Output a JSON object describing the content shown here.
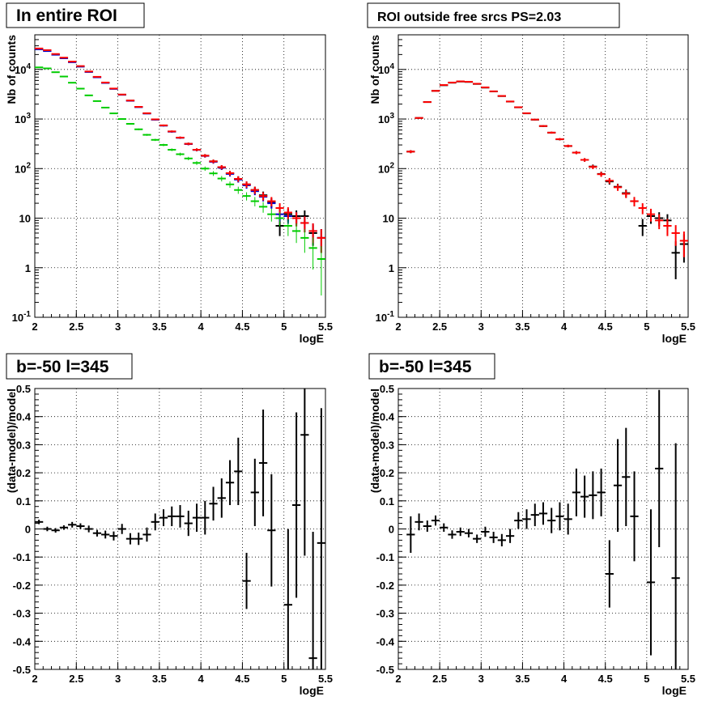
{
  "chart_data": [
    {
      "type": "scatter",
      "title": "In entire ROI",
      "xlabel": "logE",
      "ylabel": "Nb of counts",
      "xlim": [
        2,
        5.5
      ],
      "ylim": [
        0.1,
        50000
      ],
      "log_y": true,
      "grid": true,
      "x_tick_labels": [
        "2",
        "2.5",
        "3",
        "3.5",
        "4",
        "4.5",
        "5",
        "5.5"
      ],
      "y_tick_labels": [
        "10^-1",
        "1",
        "10",
        "10^2",
        "10^3",
        "10^4"
      ],
      "series": [
        {
          "color": "#000000",
          "x": [
            2.05,
            2.15,
            2.25,
            2.35,
            2.45,
            2.55,
            2.65,
            2.75,
            2.85,
            2.95,
            3.05,
            3.15,
            3.25,
            3.35,
            3.45,
            3.55,
            3.65,
            3.75,
            3.85,
            3.95,
            4.05,
            4.15,
            4.25,
            4.35,
            4.45,
            4.55,
            4.65,
            4.75,
            4.85,
            4.95,
            5.05,
            5.15,
            5.25,
            5.35,
            5.45
          ],
          "y": [
            26000,
            24000,
            20000,
            17000,
            14200,
            11500,
            9000,
            7000,
            5400,
            4100,
            3100,
            2350,
            1750,
            1300,
            980,
            740,
            560,
            420,
            315,
            240,
            182,
            140,
            106,
            80,
            62,
            48,
            37,
            29,
            21,
            7,
            12,
            11,
            11,
            5,
            4
          ]
        },
        {
          "color": "#0000cc",
          "x": [
            2.05,
            2.15,
            2.25,
            2.35,
            2.45,
            2.55,
            2.65,
            2.75,
            2.85,
            2.95,
            3.05,
            3.15,
            3.25,
            3.35,
            3.45,
            3.55,
            3.65,
            3.75,
            3.85,
            3.95,
            4.05,
            4.15,
            4.25,
            4.35,
            4.45,
            4.55,
            4.65,
            4.75,
            4.85,
            4.95,
            5.05,
            5.15,
            5.25,
            5.35,
            5.45
          ],
          "y": [
            25500,
            23500,
            19800,
            16800,
            14000,
            11400,
            8900,
            6950,
            5350,
            4050,
            3080,
            2330,
            1740,
            1290,
            970,
            735,
            555,
            418,
            313,
            238,
            180,
            137,
            104,
            78,
            60,
            46,
            35,
            27,
            20,
            12,
            11,
            10,
            8,
            5.5,
            4
          ]
        },
        {
          "color": "#ff0000",
          "x": [
            2.05,
            2.15,
            2.25,
            2.35,
            2.45,
            2.55,
            2.65,
            2.75,
            2.85,
            2.95,
            3.05,
            3.15,
            3.25,
            3.35,
            3.45,
            3.55,
            3.65,
            3.75,
            3.85,
            3.95,
            4.05,
            4.15,
            4.25,
            4.35,
            4.45,
            4.55,
            4.65,
            4.75,
            4.85,
            4.95,
            5.05,
            5.15,
            5.25,
            5.35,
            5.45
          ],
          "y": [
            26500,
            24500,
            20500,
            17300,
            14400,
            11700,
            9100,
            7100,
            5450,
            4120,
            3120,
            2360,
            1760,
            1310,
            985,
            745,
            562,
            422,
            316,
            240,
            182,
            140,
            107,
            81,
            62,
            48,
            37,
            28,
            22,
            16,
            13,
            10,
            8,
            5.5,
            4
          ]
        },
        {
          "color": "#00cc00",
          "x": [
            2.05,
            2.15,
            2.25,
            2.35,
            2.45,
            2.55,
            2.65,
            2.75,
            2.85,
            2.95,
            3.05,
            3.15,
            3.25,
            3.35,
            3.45,
            3.55,
            3.65,
            3.75,
            3.85,
            3.95,
            4.05,
            4.15,
            4.25,
            4.35,
            4.45,
            4.55,
            4.65,
            4.75,
            4.85,
            4.95,
            5.05,
            5.15,
            5.25,
            5.35,
            5.45
          ],
          "y": [
            11000,
            10500,
            8800,
            7200,
            5400,
            4100,
            3000,
            2300,
            1700,
            1300,
            1000,
            800,
            620,
            480,
            380,
            300,
            240,
            195,
            160,
            130,
            100,
            80,
            63,
            48,
            37,
            28,
            22,
            17,
            12,
            10,
            7,
            5.5,
            4,
            2.5,
            1.5
          ]
        }
      ]
    },
    {
      "type": "scatter",
      "title": "ROI outside free srcs PS=2.03",
      "xlabel": "logE",
      "ylabel": "Nb of counts",
      "xlim": [
        2,
        5.5
      ],
      "ylim": [
        0.1,
        50000
      ],
      "log_y": true,
      "grid": true,
      "x_tick_labels": [
        "2",
        "2.5",
        "3",
        "3.5",
        "4",
        "4.5",
        "5",
        "5.5"
      ],
      "y_tick_labels": [
        "10^-1",
        "1",
        "10",
        "10^2",
        "10^3",
        "10^4"
      ],
      "series": [
        {
          "color": "#000000",
          "x": [
            2.15,
            2.25,
            2.35,
            2.45,
            2.55,
            2.65,
            2.75,
            2.85,
            2.95,
            3.05,
            3.15,
            3.25,
            3.35,
            3.45,
            3.55,
            3.65,
            3.75,
            3.85,
            3.95,
            4.05,
            4.15,
            4.25,
            4.35,
            4.45,
            4.55,
            4.65,
            4.75,
            4.85,
            4.95,
            5.05,
            5.15,
            5.25,
            5.35,
            5.45
          ],
          "y": [
            220,
            1050,
            2200,
            3700,
            4800,
            5400,
            5700,
            5600,
            5100,
            4300,
            3600,
            2900,
            2250,
            1720,
            1300,
            970,
            720,
            530,
            390,
            285,
            210,
            150,
            110,
            78,
            55,
            43,
            32,
            22,
            7,
            11,
            10,
            9,
            2,
            3
          ]
        },
        {
          "color": "#ff0000",
          "x": [
            2.15,
            2.25,
            2.35,
            2.45,
            2.55,
            2.65,
            2.75,
            2.85,
            2.95,
            3.05,
            3.15,
            3.25,
            3.35,
            3.45,
            3.55,
            3.65,
            3.75,
            3.85,
            3.95,
            4.05,
            4.15,
            4.25,
            4.35,
            4.45,
            4.55,
            4.65,
            4.75,
            4.85,
            4.95,
            5.05,
            5.15,
            5.25,
            5.35,
            5.45
          ],
          "y": [
            220,
            1050,
            2200,
            3700,
            4850,
            5450,
            5750,
            5650,
            5150,
            4350,
            3620,
            2920,
            2260,
            1730,
            1310,
            975,
            722,
            532,
            392,
            286,
            210,
            150,
            108,
            77,
            57,
            42,
            31,
            22,
            16,
            12,
            9,
            7,
            5,
            3.5
          ]
        }
      ]
    },
    {
      "type": "scatter",
      "title": "b=-50 l=345",
      "xlabel": "logE",
      "ylabel": "(data-model)/model",
      "xlim": [
        2,
        5.5
      ],
      "ylim": [
        -0.5,
        0.5
      ],
      "grid": true,
      "x_tick_labels": [
        "2",
        "2.5",
        "3",
        "3.5",
        "4",
        "4.5",
        "5",
        "5.5"
      ],
      "y_tick_labels": [
        "-0.5",
        "-0.4",
        "-0.3",
        "-0.2",
        "-0.1",
        "0",
        "0.1",
        "0.2",
        "0.3",
        "0.4",
        "0.5"
      ],
      "series": [
        {
          "color": "#000000",
          "x": [
            2.05,
            2.15,
            2.25,
            2.35,
            2.45,
            2.55,
            2.65,
            2.75,
            2.85,
            2.95,
            3.05,
            3.15,
            3.25,
            3.35,
            3.45,
            3.55,
            3.65,
            3.75,
            3.85,
            3.95,
            4.05,
            4.15,
            4.25,
            4.35,
            4.45,
            4.55,
            4.65,
            4.75,
            4.85,
            4.95,
            5.05,
            5.15,
            5.25,
            5.35,
            5.45
          ],
          "y": [
            0.025,
            0.0,
            -0.005,
            0.005,
            0.015,
            0.01,
            0.0,
            -0.015,
            -0.02,
            -0.025,
            0.0,
            -0.035,
            -0.035,
            -0.02,
            0.025,
            0.04,
            0.045,
            0.045,
            0.02,
            0.04,
            0.04,
            0.09,
            0.11,
            0.165,
            0.205,
            -0.185,
            0.13,
            0.235,
            -0.005,
            null,
            -0.27,
            0.085,
            0.335,
            -0.46,
            -0.05
          ],
          "err": [
            0.008,
            0.008,
            0.008,
            0.008,
            0.01,
            0.01,
            0.012,
            0.012,
            0.014,
            0.016,
            0.018,
            0.02,
            0.022,
            0.025,
            0.03,
            0.03,
            0.035,
            0.04,
            0.045,
            0.05,
            0.06,
            0.06,
            0.07,
            0.08,
            0.12,
            0.1,
            0.12,
            0.19,
            0.2,
            null,
            0.27,
            0.33,
            0.43,
            0.45,
            0.48
          ]
        }
      ]
    },
    {
      "type": "scatter",
      "title": "b=-50 l=345",
      "xlabel": "logE",
      "ylabel": "(data-model)/model",
      "xlim": [
        2,
        5.5
      ],
      "ylim": [
        -0.5,
        0.5
      ],
      "grid": true,
      "x_tick_labels": [
        "2",
        "2.5",
        "3",
        "3.5",
        "4",
        "4.5",
        "5",
        "5.5"
      ],
      "y_tick_labels": [
        "-0.5",
        "-0.4",
        "-0.3",
        "-0.2",
        "-0.1",
        "0",
        "0.1",
        "0.2",
        "0.3",
        "0.4",
        "0.5"
      ],
      "series": [
        {
          "color": "#000000",
          "x": [
            2.15,
            2.25,
            2.35,
            2.45,
            2.55,
            2.65,
            2.75,
            2.85,
            2.95,
            3.05,
            3.15,
            3.25,
            3.35,
            3.45,
            3.55,
            3.65,
            3.75,
            3.85,
            3.95,
            4.05,
            4.15,
            4.25,
            4.35,
            4.45,
            4.55,
            4.65,
            4.75,
            4.85,
            4.95,
            5.05,
            5.15,
            5.25,
            5.35,
            5.45
          ],
          "y": [
            -0.02,
            0.025,
            0.01,
            0.03,
            0.005,
            -0.02,
            -0.01,
            -0.015,
            -0.035,
            -0.01,
            -0.03,
            -0.04,
            -0.025,
            0.03,
            0.035,
            0.05,
            0.055,
            0.03,
            0.045,
            0.035,
            0.13,
            0.115,
            0.12,
            0.13,
            -0.16,
            0.155,
            0.185,
            0.045,
            null,
            -0.19,
            0.215,
            null,
            -0.175,
            null
          ],
          "err": [
            0.065,
            0.03,
            0.02,
            0.018,
            0.015,
            0.015,
            0.015,
            0.015,
            0.015,
            0.018,
            0.02,
            0.022,
            0.025,
            0.03,
            0.035,
            0.04,
            0.04,
            0.045,
            0.05,
            0.055,
            0.085,
            0.075,
            0.085,
            0.085,
            0.12,
            0.165,
            0.175,
            0.16,
            null,
            0.26,
            0.28,
            null,
            0.48,
            null
          ]
        }
      ]
    }
  ]
}
